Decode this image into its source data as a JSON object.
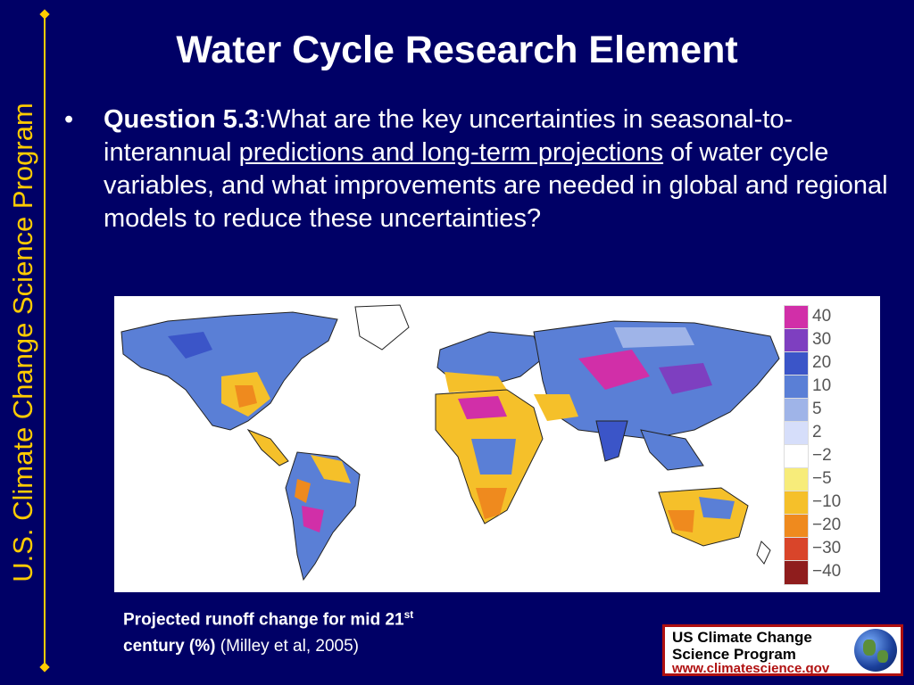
{
  "sidebar": {
    "text": "U.S. Climate Change Science Program"
  },
  "slide": {
    "title": "Water Cycle Research Element",
    "bullet": "•",
    "question_label": "Question 5.3",
    "question_colon": ":",
    "question_text_1": "What are the key uncertainties in seasonal-to-interannual ",
    "question_underlined": "predictions and long-term projections",
    "question_text_2": " of water cycle variables, and what improvements are needed in global and regional models to reduce these uncertainties?"
  },
  "figure": {
    "legend": [
      {
        "label": "40",
        "color": "#d12fa8"
      },
      {
        "label": "30",
        "color": "#7e3fc0"
      },
      {
        "label": "20",
        "color": "#3b55c8"
      },
      {
        "label": "10",
        "color": "#5a7fd6"
      },
      {
        "label": "5",
        "color": "#9fb4e8"
      },
      {
        "label": "2",
        "color": "#d6defa"
      },
      {
        "label": "−2",
        "color": "#ffffff"
      },
      {
        "label": "−5",
        "color": "#f7ec7a"
      },
      {
        "label": "−10",
        "color": "#f5c02a"
      },
      {
        "label": "−20",
        "color": "#ef8a1e"
      },
      {
        "label": "−30",
        "color": "#d9452a"
      },
      {
        "label": "−40",
        "color": "#8f1d1d"
      }
    ],
    "caption_bold_1": "Projected runoff change for mid 21",
    "caption_sup": "st",
    "caption_bold_2": "century (%)",
    "caption_rest": " (Milley et al, 2005)"
  },
  "logo": {
    "line1": "US Climate Change",
    "line1b": "Science Program",
    "line2": "www.climatescience.gov"
  }
}
